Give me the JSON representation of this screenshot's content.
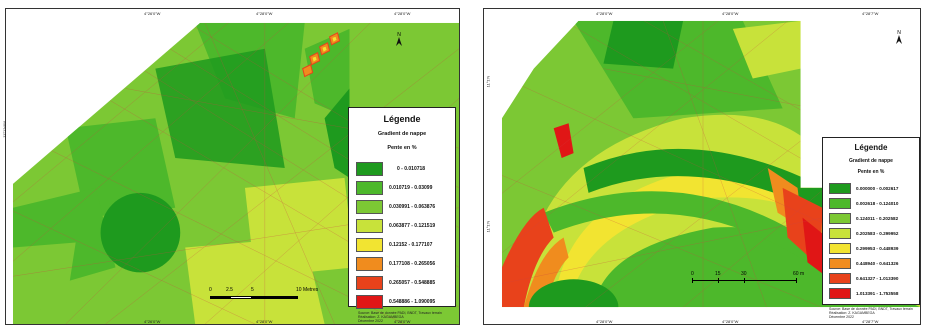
{
  "colors": {
    "class1": "#1e9a1e",
    "class2": "#4db82b",
    "class3": "#7cc834",
    "class4": "#c8e23a",
    "class5": "#f2e431",
    "class6": "#f08c1e",
    "class7": "#e8421b",
    "class8": "#e01616"
  },
  "left_map": {
    "top_ticks": [
      "4°26'0\"W",
      "4°28'0\"W",
      "4°28'0\"W"
    ],
    "bottom_ticks": [
      "4°26'0\"W",
      "4°28'0\"W",
      "4°28'0\"W"
    ],
    "left_tick": "11°1'N/W",
    "right_tick": "11°1'N/W",
    "legend": {
      "title": "Légende",
      "subtitle": "Gradient de nappe",
      "unit": "Pente en %",
      "classes": [
        {
          "label": "0 - 0.010718",
          "color_key": "class1"
        },
        {
          "label": "0.010719 - 0.03099",
          "color_key": "class2"
        },
        {
          "label": "0.030991 - 0.063876",
          "color_key": "class3"
        },
        {
          "label": "0.063877 - 0.121519",
          "color_key": "class4"
        },
        {
          "label": "0.12152 - 0.177107",
          "color_key": "class5"
        },
        {
          "label": "0.177108 - 0.265056",
          "color_key": "class6"
        },
        {
          "label": "0.265057 - 0.548885",
          "color_key": "class7"
        },
        {
          "label": "0.548886 - 1.090095",
          "color_key": "class8"
        }
      ]
    },
    "scale_labels": [
      "0",
      "2.5",
      "5",
      "10 Metres"
    ],
    "source": "Source: Base de donnée PADI, BNDT, Travaux terrain\nRéalisation: Z. KAGAMBEGA\nDécembre 2022"
  },
  "right_map": {
    "top_ticks": [
      "4°28'0\"W",
      "4°28'0\"W",
      "4°28'7\"W"
    ],
    "bottom_ticks": [
      "4°28'0\"W",
      "4°28'0\"W",
      "4°28'7\"W"
    ],
    "left_ticks": [
      "11°1'N",
      "11°1'N"
    ],
    "legend": {
      "title": "Légende",
      "subtitle": "Gradient de nappe",
      "unit": "Pente en %",
      "classes": [
        {
          "label": "0.000000 - 0.002617",
          "color_key": "class1"
        },
        {
          "label": "0.002618 - 0.124010",
          "color_key": "class2"
        },
        {
          "label": "0.124011 - 0.202582",
          "color_key": "class3"
        },
        {
          "label": "0.202583 - 0.299952",
          "color_key": "class4"
        },
        {
          "label": "0.299953 - 0.448939",
          "color_key": "class5"
        },
        {
          "label": "0.448940 - 0.641326",
          "color_key": "class6"
        },
        {
          "label": "0.641327 - 1.013390",
          "color_key": "class7"
        },
        {
          "label": "1.013391 - 1.753558",
          "color_key": "class8"
        }
      ]
    },
    "scale_labels": [
      "0",
      "15",
      "30",
      "60 m"
    ],
    "source": "Source: Base de donnée PADI, BNDT, Travaux terrain\nRéalisation: Z. KAGAMBEGA\nDécembre 2022"
  }
}
